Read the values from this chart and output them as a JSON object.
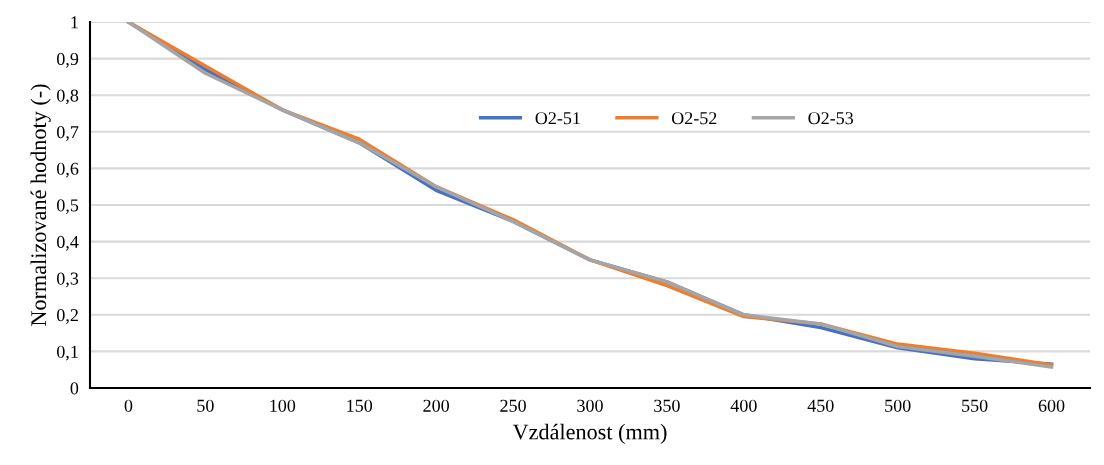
{
  "chart_data": {
    "type": "line",
    "xlabel": "Vzdálenost (mm)",
    "ylabel": "Normalizované hodnoty (-)",
    "categories": [
      "0",
      "50",
      "100",
      "150",
      "200",
      "250",
      "300",
      "350",
      "400",
      "450",
      "500",
      "550",
      "600"
    ],
    "series": [
      {
        "name": "O2-51",
        "color": "#4472c4",
        "values": [
          1,
          0.87,
          0.76,
          0.67,
          0.54,
          0.455,
          0.35,
          0.29,
          0.2,
          0.165,
          0.11,
          0.08,
          0.065
        ]
      },
      {
        "name": "O2-52",
        "color": "#ed7d31",
        "values": [
          1,
          0.88,
          0.76,
          0.68,
          0.55,
          0.46,
          0.35,
          0.28,
          0.195,
          0.175,
          0.12,
          0.095,
          0.063
        ]
      },
      {
        "name": "O2-53",
        "color": "#a5a5a5",
        "values": [
          1,
          0.86,
          0.76,
          0.67,
          0.55,
          0.455,
          0.35,
          0.29,
          0.2,
          0.175,
          0.113,
          0.087,
          0.057
        ]
      }
    ],
    "ylim": [
      0,
      1
    ],
    "yticks": [
      0,
      {
        "value": 0.1,
        "label": "0,1"
      },
      {
        "value": 0.2,
        "label": "0,2"
      },
      {
        "value": 0.3,
        "label": "0,3"
      },
      {
        "value": 0.4,
        "label": "0,4"
      },
      {
        "value": 0.5,
        "label": "0,5"
      },
      {
        "value": 0.6,
        "label": "0,6"
      },
      {
        "value": 0.7,
        "label": "0,7"
      },
      {
        "value": 0.8,
        "label": "0,8"
      },
      {
        "value": 0.9,
        "label": "0,9"
      },
      1
    ],
    "grid": "y",
    "legend": "top right",
    "marker": "none",
    "line_style": "solid"
  }
}
